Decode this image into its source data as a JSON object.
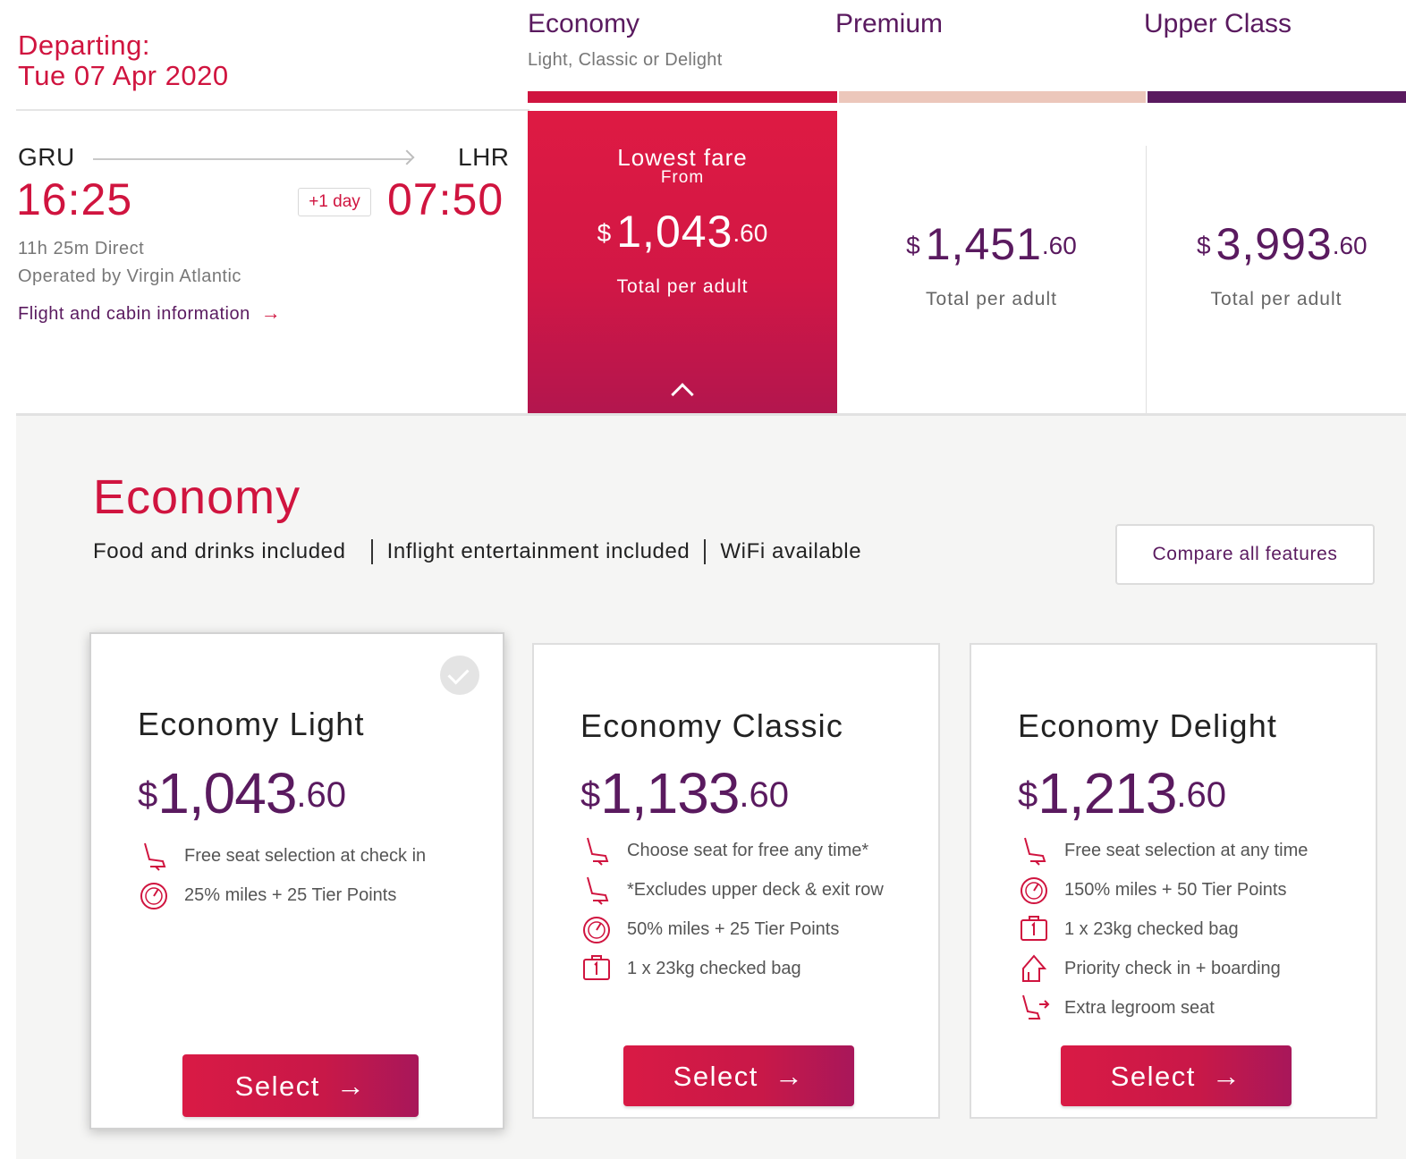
{
  "departing": {
    "label": "Departing:",
    "date": "Tue 07 Apr 2020"
  },
  "cabins": [
    {
      "name": "Economy",
      "sub": "Light, Classic or Delight",
      "bar_color": "#d0143f"
    },
    {
      "name": "Premium",
      "sub": "",
      "bar_color": "#ecc7bb"
    },
    {
      "name": "Upper Class",
      "sub": "",
      "bar_color": "#5a1a5f"
    }
  ],
  "flight": {
    "origin": "GRU",
    "destination": "LHR",
    "depart_time": "16:25",
    "arrive_time": "07:50",
    "day_offset": "+1 day",
    "duration": "11h 25m Direct",
    "operator": "Operated by Virgin Atlantic",
    "info_link": "Flight and cabin information",
    "info_arrow": "→"
  },
  "fares": [
    {
      "badge": "Lowest fare",
      "badge_sub": "From",
      "currency": "$",
      "amount": "1,043",
      "cents": ".60",
      "per": "Total per adult"
    },
    {
      "currency": "$",
      "amount": "1,451",
      "cents": ".60",
      "per": "Total per adult"
    },
    {
      "currency": "$",
      "amount": "3,993",
      "cents": ".60",
      "per": "Total per adult"
    }
  ],
  "panel": {
    "title": "Economy",
    "features": [
      "Food and drinks included",
      "Inflight entertainment included",
      "WiFi available"
    ],
    "compare_label": "Compare all features",
    "options": [
      {
        "title": "Economy Light",
        "currency": "$",
        "amount": "1,043",
        "cents": ".60",
        "benefits": [
          {
            "icon": "seat-icon",
            "text": "Free seat selection at check in"
          },
          {
            "icon": "miles-gauge-icon",
            "text": "25% miles + 25 Tier Points"
          }
        ],
        "select_label": "Select"
      },
      {
        "title": "Economy Classic",
        "currency": "$",
        "amount": "1,133",
        "cents": ".60",
        "benefits": [
          {
            "icon": "seat-icon",
            "text": "Choose seat for free any time*"
          },
          {
            "icon": "seat-icon",
            "text": "*Excludes upper deck & exit row"
          },
          {
            "icon": "miles-gauge-icon",
            "text": "50% miles + 25 Tier Points"
          },
          {
            "icon": "checked-bag-icon",
            "text": "1 x 23kg checked bag"
          }
        ],
        "select_label": "Select"
      },
      {
        "title": "Economy Delight",
        "currency": "$",
        "amount": "1,213",
        "cents": ".60",
        "benefits": [
          {
            "icon": "seat-icon",
            "text": "Free seat selection at any time"
          },
          {
            "icon": "miles-gauge-icon",
            "text": "150% miles + 50 Tier Points"
          },
          {
            "icon": "checked-bag-icon",
            "text": "1 x 23kg checked bag"
          },
          {
            "icon": "priority-icon",
            "text": "Priority check in + boarding"
          },
          {
            "icon": "legroom-seat-icon",
            "text": "Extra legroom seat"
          }
        ],
        "select_label": "Select"
      }
    ]
  },
  "colors": {
    "accent": "#d0143f",
    "purple": "#5a1a5f",
    "panel_bg": "#f5f5f4"
  }
}
